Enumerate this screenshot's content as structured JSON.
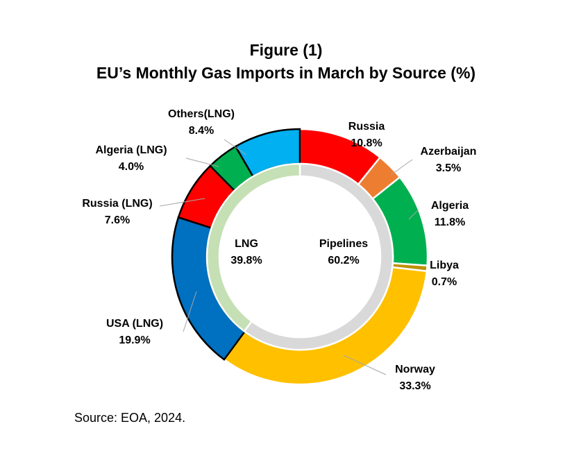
{
  "figure_title": "Figure (1)",
  "chart_title": "EU’s Monthly Gas Imports in March by Source (%)",
  "source": "Source: EOA, 2024.",
  "chart_data": {
    "type": "donut",
    "title": "EU’s Monthly Gas Imports in March by Source (%)",
    "inner_ring": [
      {
        "label": "Pipelines",
        "value": 60.2,
        "value_text": "60.2%",
        "color": "#d9d9d9"
      },
      {
        "label": "LNG",
        "value": 39.8,
        "value_text": "39.8%",
        "color": "#c5e0b4"
      }
    ],
    "outer_ring": [
      {
        "label": "Russia",
        "value": 10.8,
        "value_text": "10.8%",
        "color": "#ff0000"
      },
      {
        "label": "Azerbaijan",
        "value": 3.5,
        "value_text": "3.5%",
        "color": "#ed7d31"
      },
      {
        "label": "Algeria",
        "value": 11.8,
        "value_text": "11.8%",
        "color": "#00b050"
      },
      {
        "label": "Libya",
        "value": 0.7,
        "value_text": "0.7%",
        "color": "#bf9000"
      },
      {
        "label": "Norway",
        "value": 33.3,
        "value_text": "33.3%",
        "color": "#ffc000"
      },
      {
        "label": "USA (LNG)",
        "value": 19.9,
        "value_text": "19.9%",
        "color": "#0070c0"
      },
      {
        "label": "Russia (LNG)",
        "value": 7.6,
        "value_text": "7.6%",
        "color": "#ff0000"
      },
      {
        "label": "Algeria  (LNG)",
        "value": 4.0,
        "value_text": "4.0%",
        "color": "#00b050"
      },
      {
        "label": "Others(LNG)",
        "value": 8.4,
        "value_text": "8.4%",
        "color": "#00b0f0"
      }
    ]
  }
}
